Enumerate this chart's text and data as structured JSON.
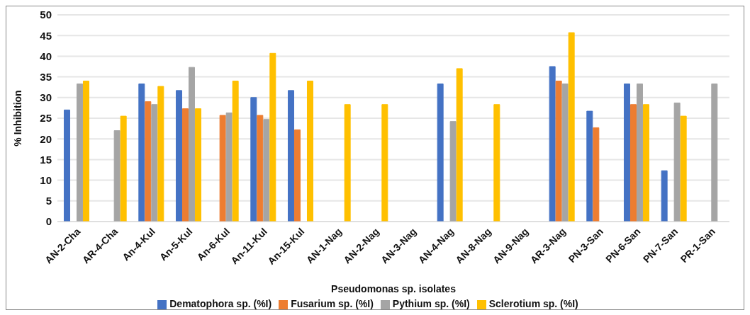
{
  "chart_data": {
    "type": "bar",
    "xlabel": "Pseudomonas sp. isolates",
    "ylabel": "% Inhibition",
    "categories": [
      "AN-2-Cha",
      "AR-4-Cha",
      "An-4-Kul",
      "An-5-Kul",
      "An-6-Kul",
      "An-11-Kul",
      "An-15-Kul",
      "AN-1-Nag",
      "AN-2-Nag",
      "AN-3-Nag",
      "AN-4-Nag",
      "AN-8-Nag",
      "AN-9-Nag",
      "AR-3-Nag",
      "PN-3-San",
      "PN-6-San",
      "PN-7-San",
      "PR-1-San"
    ],
    "series": [
      {
        "name": "Dematophora sp. (%I)",
        "color": "#4472c4",
        "values": [
          27,
          0,
          33.3,
          31.7,
          0,
          30,
          31.7,
          0,
          0,
          0,
          33.3,
          0,
          0,
          37.5,
          26.7,
          33.3,
          12.3,
          0
        ]
      },
      {
        "name": "Fusarium sp. (%I)",
        "color": "#ed7d31",
        "values": [
          0,
          0,
          29,
          27.3,
          25.7,
          25.7,
          22.2,
          0,
          0,
          0,
          0,
          0,
          0,
          34,
          22.7,
          28.3,
          0,
          0
        ]
      },
      {
        "name": "Pythium sp. (%I)",
        "color": "#a5a5a5",
        "values": [
          33.3,
          22,
          28.3,
          37.3,
          26.3,
          24.7,
          0,
          0,
          0,
          0,
          24.2,
          0,
          0,
          33.3,
          0,
          33.3,
          28.7,
          33.3
        ]
      },
      {
        "name": "Sclerotium sp. (%I)",
        "color": "#ffc000",
        "values": [
          34,
          25.5,
          32.7,
          27.3,
          34,
          40.7,
          34,
          28.3,
          28.3,
          0,
          37,
          28.3,
          0,
          45.7,
          0,
          28.3,
          25.5,
          0
        ]
      }
    ],
    "ylim": [
      0,
      50
    ],
    "yticks": [
      0,
      5,
      10,
      15,
      20,
      25,
      30,
      35,
      40,
      45,
      50
    ],
    "grid": "y",
    "legend": "bottom"
  }
}
